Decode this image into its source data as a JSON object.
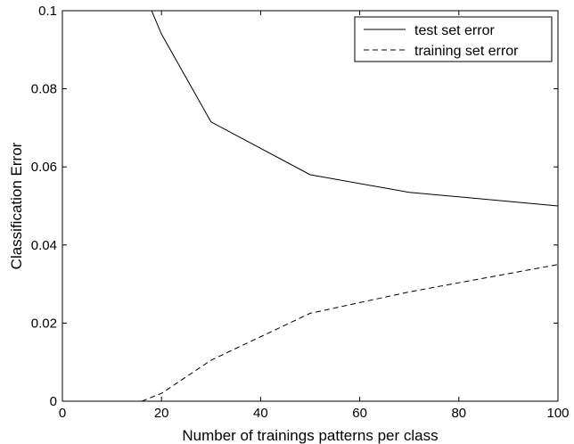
{
  "chart_data": {
    "type": "line",
    "title": "",
    "xlabel": "Number of trainings patterns per class",
    "ylabel": "Classification Error",
    "xlim": [
      0,
      100
    ],
    "ylim": [
      0,
      0.1
    ],
    "x_ticks": [
      0,
      20,
      40,
      60,
      80,
      100
    ],
    "y_ticks": [
      0,
      0.02,
      0.04,
      0.06,
      0.08,
      0.1
    ],
    "x_tick_labels": [
      "0",
      "20",
      "40",
      "60",
      "80",
      "100"
    ],
    "y_tick_labels": [
      "0",
      "0.02",
      "0.04",
      "0.06",
      "0.08",
      "0.1"
    ],
    "grid": false,
    "legend_position": "top-right",
    "series": [
      {
        "name": "test set error",
        "style": "solid",
        "color": "#000000",
        "x": [
          18,
          20,
          30,
          50,
          70,
          100
        ],
        "y": [
          0.1,
          0.094,
          0.0715,
          0.058,
          0.0535,
          0.05
        ]
      },
      {
        "name": "training set error",
        "style": "dashed",
        "color": "#000000",
        "x": [
          16,
          20,
          30,
          50,
          70,
          100
        ],
        "y": [
          0,
          0.002,
          0.0105,
          0.0225,
          0.028,
          0.035
        ]
      }
    ]
  }
}
